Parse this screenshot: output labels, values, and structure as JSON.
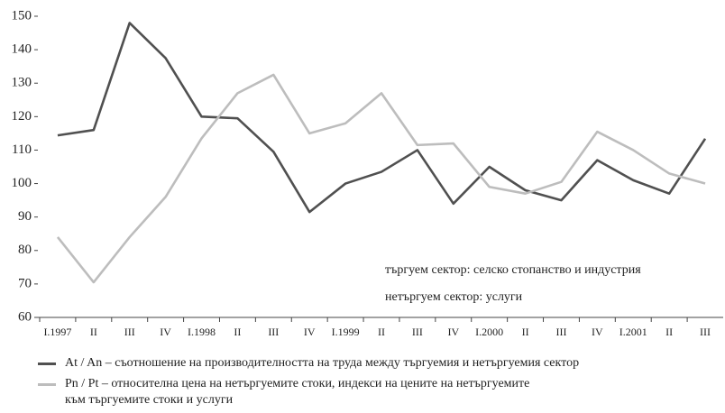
{
  "chart_data": {
    "type": "line",
    "categories": [
      "I.1997",
      "II",
      "III",
      "IV",
      "I.1998",
      "II",
      "III",
      "IV",
      "I.1999",
      "II",
      "III",
      "IV",
      "I.2000",
      "II",
      "III",
      "IV",
      "I.2001",
      "II",
      "III"
    ],
    "series": [
      {
        "name": "At / An – съотношение на производителността на труда между търгуемия и нетъргуемия сектор",
        "color": "#505050",
        "values": [
          114.4,
          116,
          148,
          137.5,
          120,
          119.5,
          109.5,
          91.5,
          100,
          103.5,
          110,
          94,
          105,
          98,
          95,
          107,
          101,
          97,
          113.4
        ]
      },
      {
        "name": "Pn / Pt – относителна цена на нетъргуемите стоки, индекси на цените на нетъргуемите\nкъм търгуемите стоки и услуги",
        "color": "#bdbdbd",
        "values": [
          84,
          70.5,
          84,
          96,
          113.5,
          127,
          132.5,
          115,
          118,
          127,
          111.5,
          112,
          99,
          97,
          100.5,
          115.5,
          110,
          103,
          100
        ]
      }
    ],
    "annotations": [
      "търгуем сектор: селско стопанство и индустрия",
      "нетъргуем сектор: услуги"
    ],
    "ylim": [
      60,
      150
    ],
    "yticks": [
      60,
      70,
      80,
      90,
      100,
      110,
      120,
      130,
      140,
      150
    ]
  }
}
